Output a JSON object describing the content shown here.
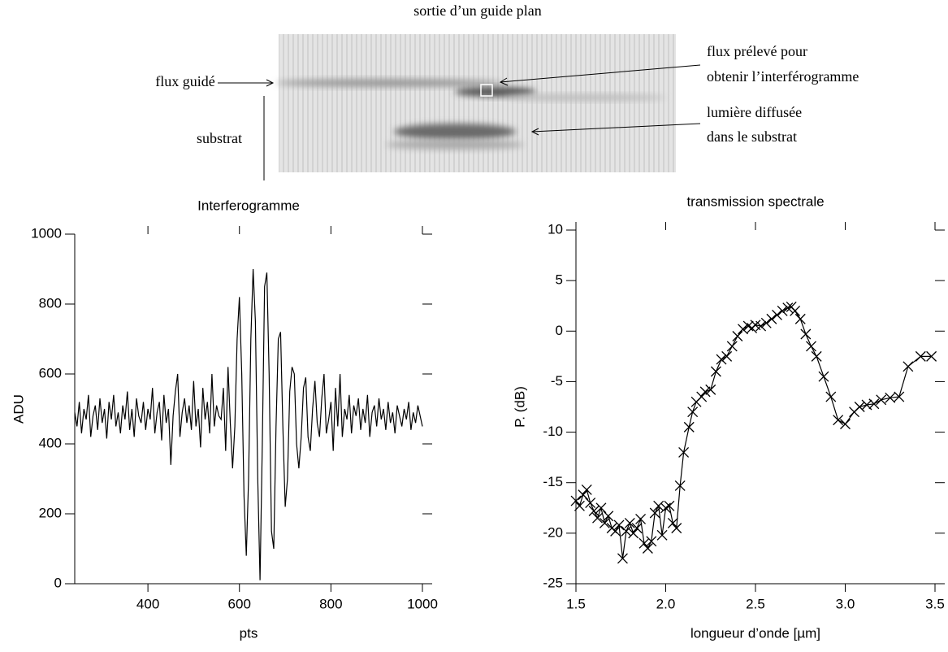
{
  "figure": {
    "title": "sortie d’un guide plan",
    "label_left_1": "flux guidé",
    "label_left_2": "substrat",
    "label_right_1a": "flux prélevé pour",
    "label_right_1b": "obtenir l’interférogramme",
    "label_right_2a": "lumière diffusée",
    "label_right_2b": "dans le substrat"
  },
  "chart_data": [
    {
      "type": "line",
      "title": "Interferogramme",
      "x_label": "pts",
      "y_label": "ADU",
      "color": "#000000",
      "xlim": [
        240,
        1000
      ],
      "ylim": [
        0,
        1000
      ],
      "xticks": [
        400,
        600,
        800,
        1000
      ],
      "yticks": [
        0,
        200,
        400,
        600,
        800,
        1000
      ],
      "x": [
        240,
        245,
        250,
        255,
        260,
        265,
        270,
        275,
        280,
        285,
        290,
        295,
        300,
        305,
        310,
        315,
        320,
        325,
        330,
        335,
        340,
        345,
        350,
        355,
        360,
        365,
        370,
        375,
        380,
        385,
        390,
        395,
        400,
        405,
        410,
        415,
        420,
        425,
        430,
        435,
        440,
        445,
        450,
        455,
        460,
        465,
        470,
        475,
        480,
        485,
        490,
        495,
        500,
        505,
        510,
        515,
        520,
        525,
        530,
        535,
        540,
        545,
        550,
        555,
        560,
        565,
        570,
        575,
        580,
        585,
        590,
        595,
        600,
        605,
        610,
        615,
        620,
        625,
        630,
        635,
        640,
        645,
        650,
        655,
        660,
        665,
        670,
        675,
        680,
        685,
        690,
        695,
        700,
        705,
        710,
        715,
        720,
        725,
        730,
        735,
        740,
        745,
        750,
        755,
        760,
        765,
        770,
        775,
        780,
        785,
        790,
        795,
        800,
        805,
        810,
        815,
        820,
        825,
        830,
        835,
        840,
        845,
        850,
        855,
        860,
        865,
        870,
        875,
        880,
        885,
        890,
        895,
        900,
        905,
        910,
        915,
        920,
        925,
        930,
        935,
        940,
        945,
        950,
        955,
        960,
        965,
        970,
        975,
        980,
        985,
        990,
        995,
        1000
      ],
      "values": [
        490,
        450,
        520,
        430,
        500,
        470,
        540,
        420,
        480,
        510,
        440,
        530,
        460,
        500,
        415,
        520,
        470,
        540,
        450,
        490,
        430,
        510,
        470,
        550,
        440,
        500,
        420,
        530,
        480,
        460,
        520,
        440,
        500,
        470,
        560,
        430,
        490,
        520,
        410,
        540,
        460,
        500,
        340,
        480,
        550,
        600,
        420,
        490,
        530,
        460,
        510,
        440,
        580,
        450,
        500,
        390,
        560,
        470,
        520,
        430,
        600,
        450,
        510,
        480,
        470,
        560,
        380,
        620,
        460,
        330,
        450,
        700,
        820,
        600,
        250,
        80,
        300,
        700,
        900,
        750,
        300,
        10,
        400,
        850,
        890,
        600,
        150,
        100,
        450,
        700,
        720,
        450,
        220,
        300,
        550,
        620,
        600,
        400,
        330,
        420,
        560,
        590,
        420,
        380,
        500,
        580,
        460,
        420,
        530,
        600,
        430,
        470,
        520,
        380,
        560,
        450,
        600,
        420,
        500,
        470,
        540,
        430,
        510,
        480,
        530,
        440,
        500,
        460,
        540,
        420,
        490,
        510,
        450,
        530,
        470,
        500,
        440,
        520,
        460,
        490,
        430,
        510,
        480,
        450,
        500,
        470,
        520,
        440,
        490,
        460,
        510,
        480,
        450
      ]
    },
    {
      "type": "line",
      "title": "transmission spectrale",
      "x_label": "longueur d’onde [µm]",
      "y_label": "P. (dB)",
      "color": "#000000",
      "marker": "x",
      "xlim": [
        1.5,
        3.5
      ],
      "ylim": [
        -25,
        10
      ],
      "xticks": [
        1.5,
        {
          "value": 2,
          "label": "2.0"
        },
        2.5,
        {
          "value": 3,
          "label": "3.0"
        },
        3.5
      ],
      "yticks": [
        -25,
        -20,
        -15,
        -10,
        -5,
        0,
        5,
        10
      ],
      "x": [
        1.5,
        1.52,
        1.54,
        1.56,
        1.58,
        1.6,
        1.62,
        1.64,
        1.66,
        1.68,
        1.7,
        1.72,
        1.74,
        1.76,
        1.78,
        1.8,
        1.82,
        1.84,
        1.86,
        1.88,
        1.9,
        1.92,
        1.94,
        1.96,
        1.98,
        2.0,
        2.02,
        2.04,
        2.06,
        2.08,
        2.1,
        2.13,
        2.15,
        2.17,
        2.2,
        2.22,
        2.25,
        2.28,
        2.31,
        2.34,
        2.37,
        2.4,
        2.43,
        2.46,
        2.48,
        2.5,
        2.53,
        2.56,
        2.59,
        2.62,
        2.65,
        2.68,
        2.7,
        2.72,
        2.75,
        2.78,
        2.81,
        2.84,
        2.88,
        2.92,
        2.96,
        3.0,
        3.05,
        3.08,
        3.12,
        3.16,
        3.2,
        3.25,
        3.3,
        3.35,
        3.42,
        3.48
      ],
      "values": [
        -16.8,
        -17.3,
        -16.2,
        -15.7,
        -17.0,
        -17.8,
        -18.5,
        -17.5,
        -19.0,
        -18.3,
        -19.5,
        -19.8,
        -19.2,
        -22.5,
        -19.8,
        -19.0,
        -20.0,
        -19.5,
        -18.6,
        -21.0,
        -21.5,
        -20.8,
        -18.0,
        -17.3,
        -20.2,
        -17.5,
        -17.3,
        -19.0,
        -19.5,
        -15.3,
        -12.0,
        -9.5,
        -8.0,
        -7.0,
        -6.5,
        -6.0,
        -5.8,
        -4.0,
        -2.8,
        -2.5,
        -1.5,
        -0.5,
        0.2,
        0.5,
        0.3,
        0.6,
        0.5,
        0.8,
        1.2,
        1.6,
        2.0,
        2.3,
        2.4,
        2.0,
        1.2,
        -0.3,
        -1.5,
        -2.5,
        -4.5,
        -6.5,
        -8.8,
        -9.2,
        -8.0,
        -7.5,
        -7.3,
        -7.2,
        -6.8,
        -6.6,
        -6.5,
        -3.5,
        -2.5,
        -2.5
      ]
    }
  ]
}
